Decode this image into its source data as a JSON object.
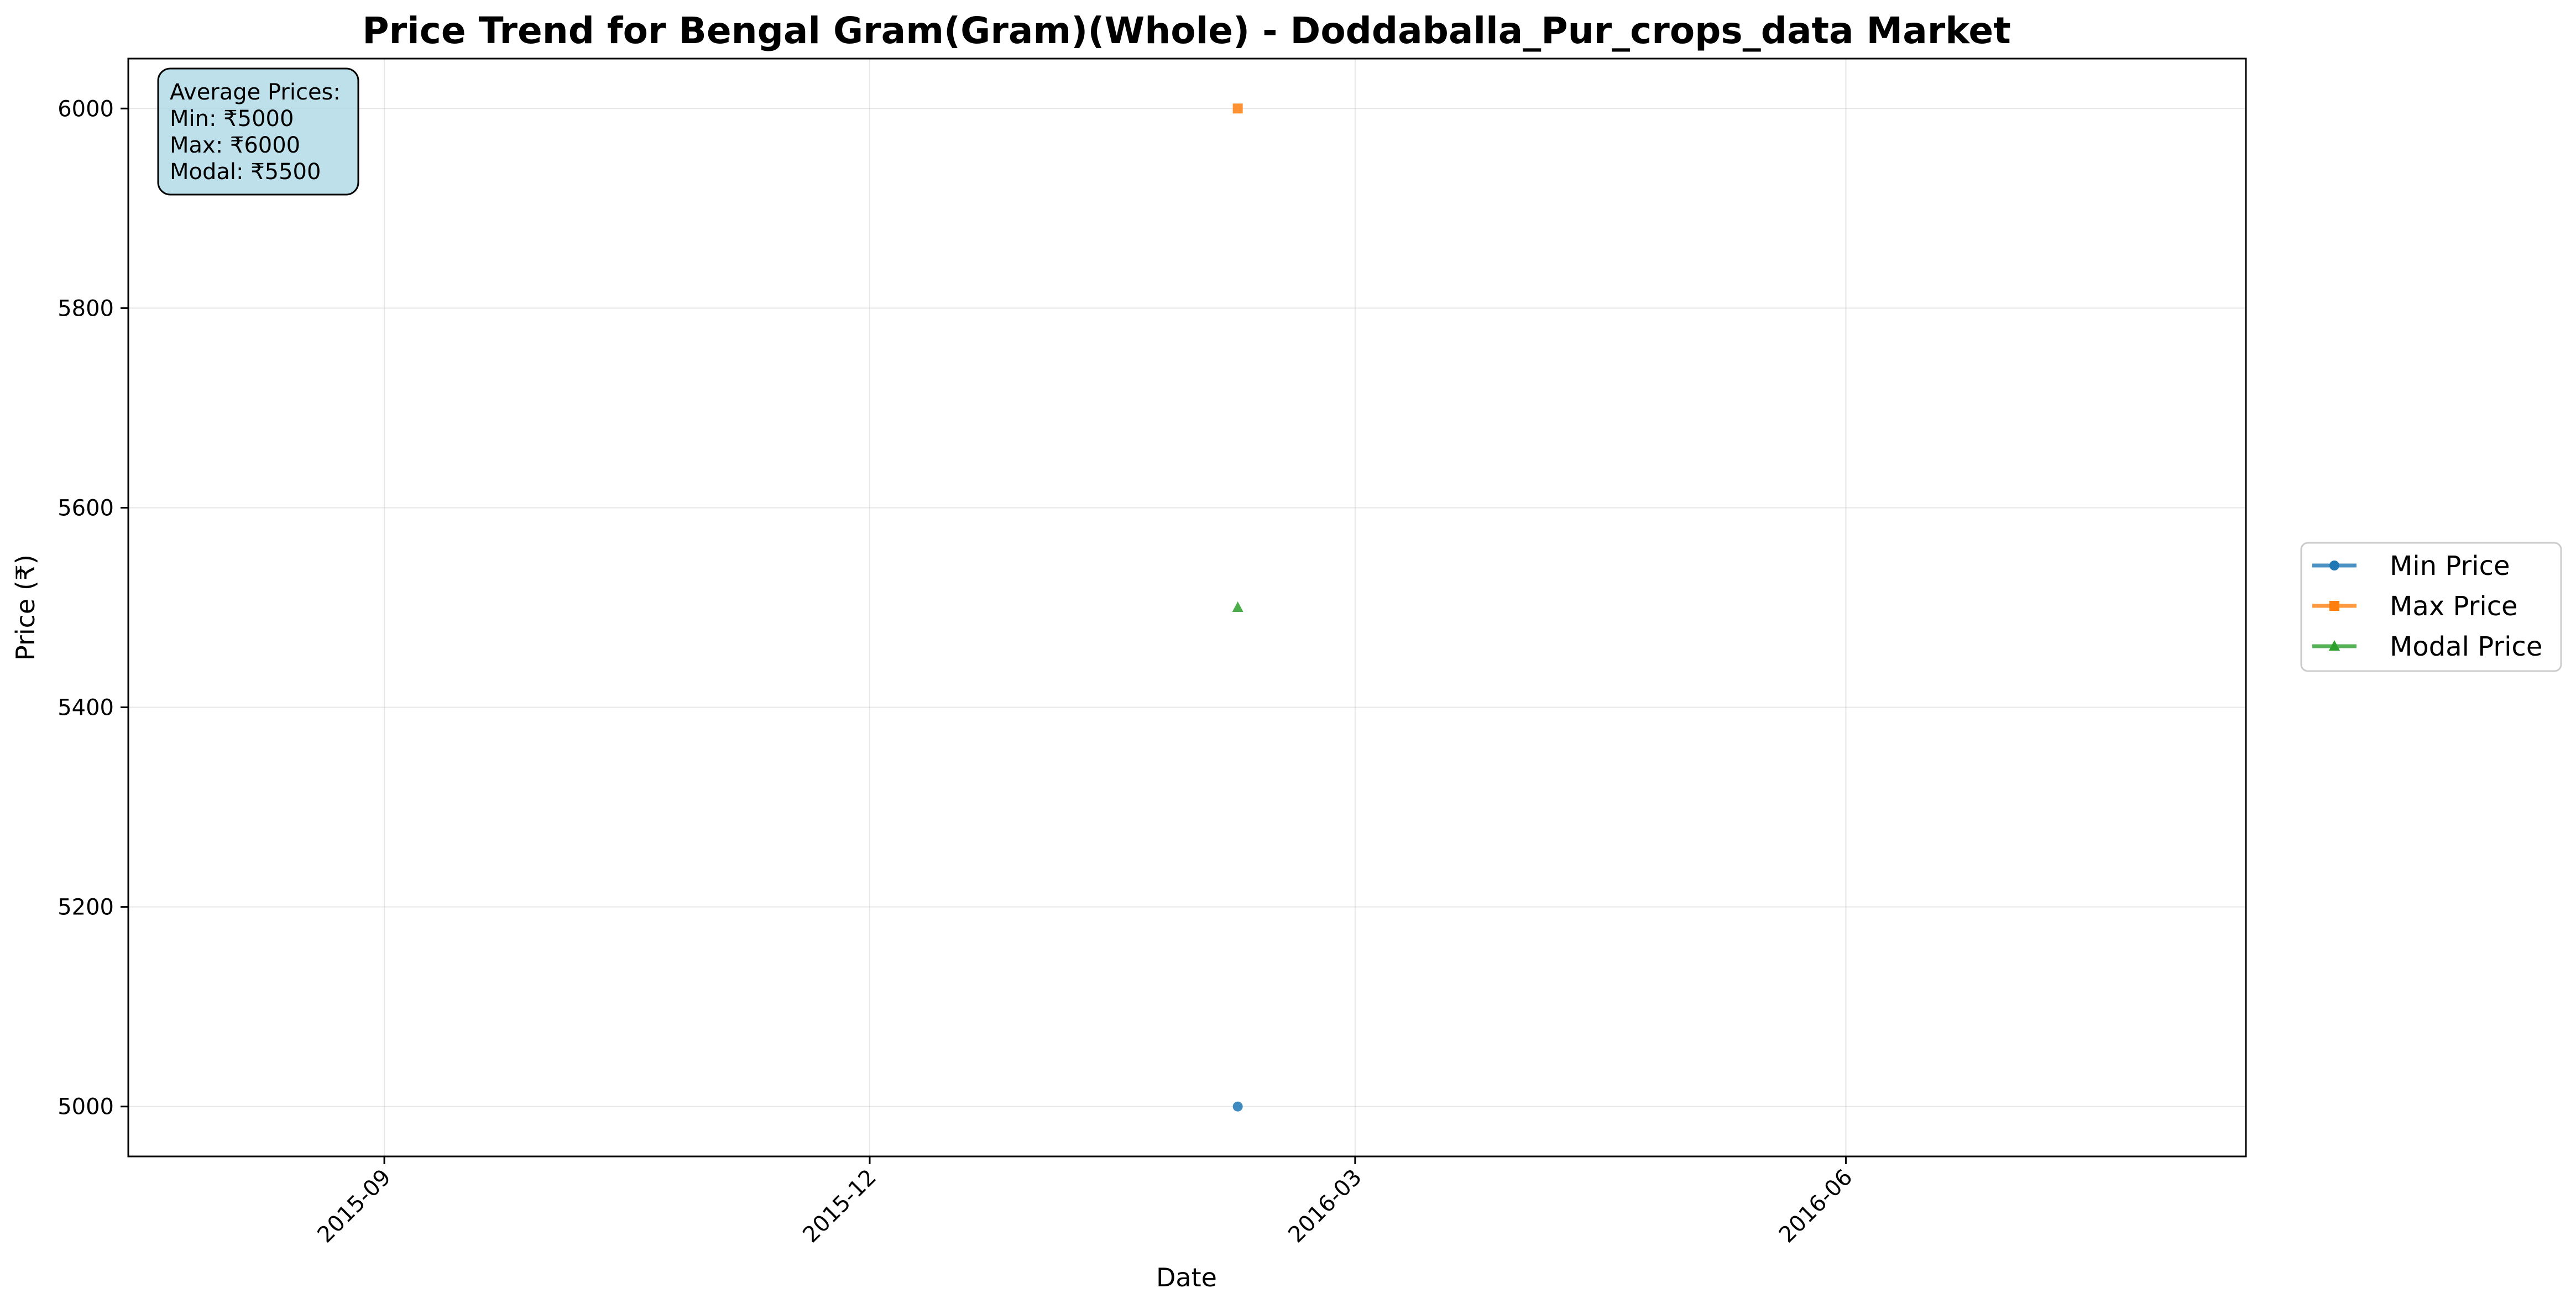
{
  "chart_data": {
    "type": "line",
    "title": "Price Trend for Bengal Gram(Gram)(Whole) - Doddaballa_Pur_crops_data Market",
    "xlabel": "Date",
    "ylabel": "Price (₹)",
    "x_scale": "date",
    "xlim": [
      "2015-07-15",
      "2016-08-15"
    ],
    "ylim": [
      4950,
      6050
    ],
    "x_ticks": [
      "2015-09-01",
      "2015-12-01",
      "2016-03-01",
      "2016-06-01"
    ],
    "x_tick_labels": [
      "2015-09",
      "2015-12",
      "2016-03",
      "2016-06"
    ],
    "y_ticks": [
      5000,
      5200,
      5400,
      5600,
      5800,
      6000
    ],
    "y_tick_labels": [
      "5000",
      "5200",
      "5400",
      "5600",
      "5800",
      "6000"
    ],
    "grid": true,
    "legend_position": "center-right outside",
    "series": [
      {
        "name": "Min Price",
        "color": "#1f77b4",
        "marker": "circle",
        "points": [
          {
            "x": "2016-02-08",
            "y": 5000
          }
        ]
      },
      {
        "name": "Max Price",
        "color": "#ff7f0e",
        "marker": "square",
        "points": [
          {
            "x": "2016-02-08",
            "y": 6000
          }
        ]
      },
      {
        "name": "Modal Price",
        "color": "#2ca02c",
        "marker": "triangle",
        "points": [
          {
            "x": "2016-02-08",
            "y": 5500
          }
        ]
      }
    ],
    "annotation": {
      "lines": [
        "Average Prices:",
        "Min: ₹5000",
        "Max: ₹6000",
        "Modal: ₹5500"
      ],
      "background": "#add8e6"
    }
  }
}
